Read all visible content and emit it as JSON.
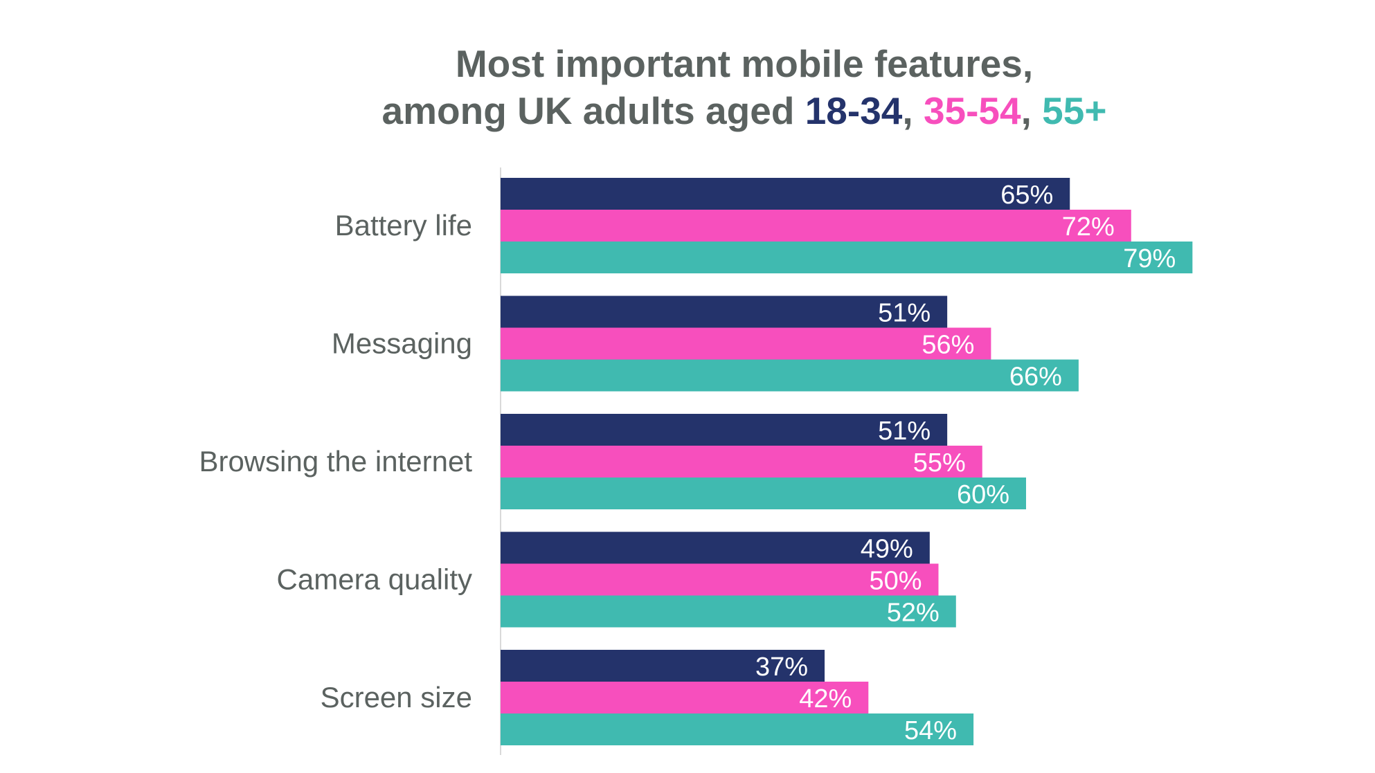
{
  "chart_data": {
    "type": "bar",
    "orientation": "horizontal",
    "title_line1": "Most important mobile features,",
    "title_line2_prefix": "among UK adults aged ",
    "categories": [
      "Battery life",
      "Messaging",
      "Browsing the internet",
      "Camera quality",
      "Screen size"
    ],
    "series": [
      {
        "name": "18-34",
        "color": "#24336b",
        "values": [
          65,
          51,
          51,
          49,
          37
        ]
      },
      {
        "name": "35-54",
        "color": "#f74fbd",
        "values": [
          72,
          56,
          55,
          50,
          42
        ]
      },
      {
        "name": "55+",
        "color": "#40bab0",
        "values": [
          79,
          66,
          60,
          52,
          54
        ]
      }
    ],
    "value_suffix": "%",
    "xlim": [
      0,
      100
    ],
    "grid": false,
    "data_labels": true,
    "text_color": "#5b6260",
    "separator": ", "
  }
}
